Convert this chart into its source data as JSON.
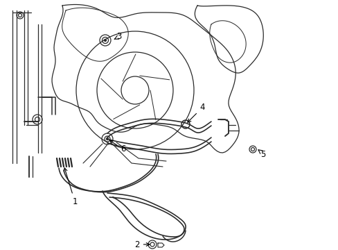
{
  "background": "#ffffff",
  "line_color": "#2a2a2a",
  "lw": 0.9,
  "figsize": [
    4.89,
    3.6
  ],
  "dpi": 100
}
